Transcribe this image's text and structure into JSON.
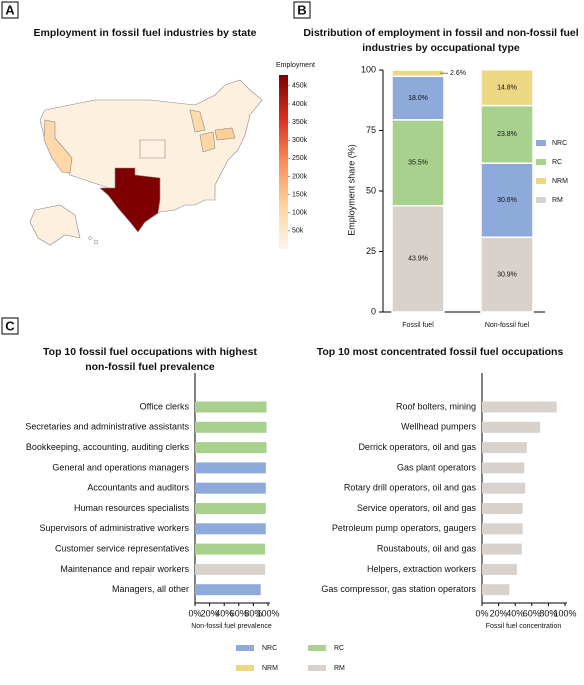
{
  "panel_labels": [
    "A",
    "B",
    "C"
  ],
  "chart_data": [
    {
      "type": "map",
      "title": "Employment in fossil fuel industries by state",
      "colorbar_label": "Employment",
      "colormap": [
        "#fff5eb",
        "#fdd49e",
        "#fc8d59",
        "#d7301f",
        "#7f0000"
      ],
      "ylim": [
        0,
        480000
      ],
      "yticks": [
        {
          "value": 50000,
          "label": "50k"
        },
        {
          "value": 100000,
          "label": "100k"
        },
        {
          "value": 150000,
          "label": "150k"
        },
        {
          "value": 200000,
          "label": "200k"
        },
        {
          "value": 250000,
          "label": "250k"
        },
        {
          "value": 300000,
          "label": "300k"
        },
        {
          "value": 350000,
          "label": "350k"
        },
        {
          "value": 400000,
          "label": "400k"
        },
        {
          "value": 450000,
          "label": "450k"
        }
      ],
      "values": [
        480000,
        130000,
        110000,
        100000,
        105000,
        15000
      ]
    },
    {
      "type": "stacked-bar",
      "title": "Distribution of employment in fossil and non-fossil fuel industries by occupational type",
      "ylabel": "Employment share (%)",
      "categories": [
        "Fossil fuel",
        "Non-fossil fuel"
      ],
      "stack_order": "descending",
      "ylim": [
        0,
        100
      ],
      "yticks": [
        0,
        25,
        50,
        75,
        100
      ],
      "series": [
        {
          "name": "NRC",
          "color": "#8eaadb",
          "values": [
            18.0,
            30.6
          ],
          "value_labels": [
            "18.0%",
            "30.6%"
          ]
        },
        {
          "name": "RC",
          "color": "#a9d18e",
          "values": [
            35.5,
            23.8
          ],
          "value_labels": [
            "35.5%",
            "23.8%"
          ]
        },
        {
          "name": "NRM",
          "color": "#ecd882",
          "values": [
            2.6,
            14.8
          ],
          "value_labels": [
            "2.6%",
            "14.8%"
          ]
        },
        {
          "name": "RM",
          "color": "#d9d1cb",
          "values": [
            43.9,
            30.9
          ],
          "value_labels": [
            "43.9%",
            "30.9%"
          ]
        }
      ]
    },
    {
      "type": "barh",
      "title": "Top 10 fossil fuel occupations with highest non-fossil fuel prevalence",
      "xlabel": "Non-fossil fuel prevalence",
      "categories": [
        "Office clerks",
        "Secretaries and administrative assistants",
        "Bookkeeping, accounting, auditing clerks",
        "General and operations managers",
        "Accountants and auditors",
        "Human resources specialists",
        "Supervisors of administrative workers",
        "Customer service representatives",
        "Maintenance and repair workers",
        "Managers, all other"
      ],
      "values": [
        98,
        98,
        98,
        97,
        97,
        97,
        97,
        96,
        96,
        90
      ],
      "colors": [
        "#a9d18e",
        "#a9d18e",
        "#a9d18e",
        "#8eaadb",
        "#8eaadb",
        "#a9d18e",
        "#8eaadb",
        "#a9d18e",
        "#d9d1cb",
        "#8eaadb"
      ],
      "xlim": [
        0,
        100
      ],
      "xticks": [
        {
          "value": 0,
          "label": "0%"
        },
        {
          "value": 20,
          "label": "20%"
        },
        {
          "value": 40,
          "label": "40%"
        },
        {
          "value": 60,
          "label": "60%"
        },
        {
          "value": 80,
          "label": "80%"
        },
        {
          "value": 100,
          "label": "100%"
        }
      ]
    },
    {
      "type": "barh",
      "title": "Top 10 most concentrated fossil fuel occupations",
      "xlabel": "Fossil fuel concentration",
      "categories": [
        "Roof bolters, mining",
        "Wellhead pumpers",
        "Derrick operators, oil and gas",
        "Gas plant operators",
        "Rotary drill operators, oil and gas",
        "Service operators, oil and gas",
        "Petroleum pump operators, gaugers",
        "Roustabouts, oil and gas",
        "Helpers, extraction workers",
        "Gas compressor, gas station operators"
      ],
      "values": [
        90,
        70,
        54,
        51,
        52,
        49,
        49,
        48,
        42,
        33
      ],
      "colors": [
        "#d9d1cb",
        "#d9d1cb",
        "#d9d1cb",
        "#d9d1cb",
        "#d9d1cb",
        "#d9d1cb",
        "#d9d1cb",
        "#d9d1cb",
        "#d9d1cb",
        "#d9d1cb"
      ],
      "xlim": [
        0,
        100
      ],
      "xticks": [
        {
          "value": 0,
          "label": "0%"
        },
        {
          "value": 20,
          "label": "20%"
        },
        {
          "value": 40,
          "label": "40%"
        },
        {
          "value": 60,
          "label": "60%"
        },
        {
          "value": 80,
          "label": "80%"
        },
        {
          "value": 100,
          "label": "100%"
        }
      ]
    }
  ],
  "shared_legend": [
    {
      "name": "NRC",
      "color": "#8eaadb"
    },
    {
      "name": "RC",
      "color": "#a9d18e"
    },
    {
      "name": "NRM",
      "color": "#ecd882"
    },
    {
      "name": "RM",
      "color": "#d9d1cb"
    }
  ]
}
